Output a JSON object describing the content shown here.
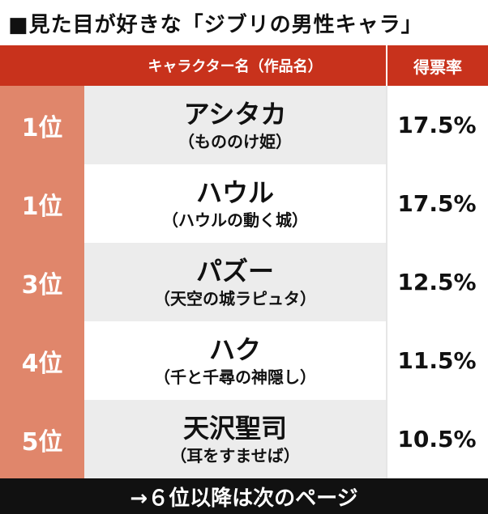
{
  "title": "■見た目が好きな「ジブリの男性キャラ」",
  "header": {
    "name_col": "キャラクター名（作品名）",
    "rate_col": "得票率"
  },
  "rows": [
    {
      "rank": "1位",
      "name": "アシタカ",
      "work": "（もののけ姫）",
      "rate": "17.5%"
    },
    {
      "rank": "1位",
      "name": "ハウル",
      "work": "（ハウルの動く城）",
      "rate": "17.5%"
    },
    {
      "rank": "3位",
      "name": "パズー",
      "work": "（天空の城ラピュタ）",
      "rate": "12.5%"
    },
    {
      "rank": "4位",
      "name": "ハク",
      "work": "（千と千尋の神隠し）",
      "rate": "11.5%"
    },
    {
      "rank": "5位",
      "name": "天沢聖司",
      "work": "（耳をすませば）",
      "rate": "10.5%"
    }
  ],
  "footer": "→６位以降は次のページ",
  "colors": {
    "header_bg": "#c8321c",
    "rank_bg": "#e0866b",
    "row_bg_shaded": "#ececec",
    "footer_bg": "#111111"
  }
}
